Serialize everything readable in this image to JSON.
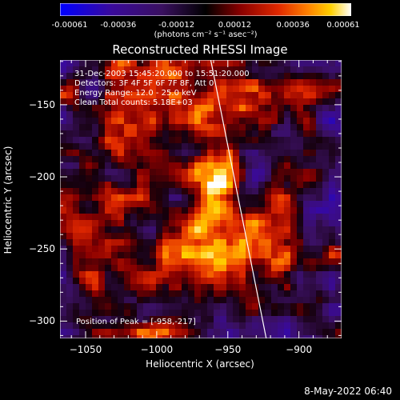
{
  "chart_data": {
    "type": "heatmap",
    "title": "Reconstructed RHESSI Image",
    "xlabel": "Heliocentric X (arcsec)",
    "ylabel": "Heliocentric Y (arcsec)",
    "xlim": [
      -1068,
      -870
    ],
    "ylim": [
      -312,
      -119
    ],
    "x_ticks": [
      -1050,
      -1000,
      -950,
      -900
    ],
    "y_ticks": [
      -300,
      -250,
      -200,
      -150
    ],
    "colorbar": {
      "ticks": [
        "-0.00061",
        "-0.00036",
        "-0.00012",
        "0.00012",
        "0.00036",
        "0.00061"
      ],
      "units": "(photons cm⁻² s⁻¹ asec⁻²)",
      "range": [
        -0.00061,
        0.00061
      ]
    },
    "annotations": [
      "31-Dec-2003 15:45:20.000 to 15:51:20.000",
      "Detectors: 3F 4F 5F 6F 7F 8F, Att 0",
      "Energy Range: 12.0 - 25.0 keV",
      "Clean     Total counts: 5.18E+03"
    ],
    "peak_label": "Position of Peak = [-958,-217]",
    "peak": [
      -958,
      -217
    ],
    "secondary_source": [
      -940,
      -252
    ],
    "limb_line": [
      [
        -962,
        -119
      ],
      [
        -923,
        -312
      ]
    ]
  },
  "footer": {
    "timestamp": "8-May-2022 06:40"
  }
}
